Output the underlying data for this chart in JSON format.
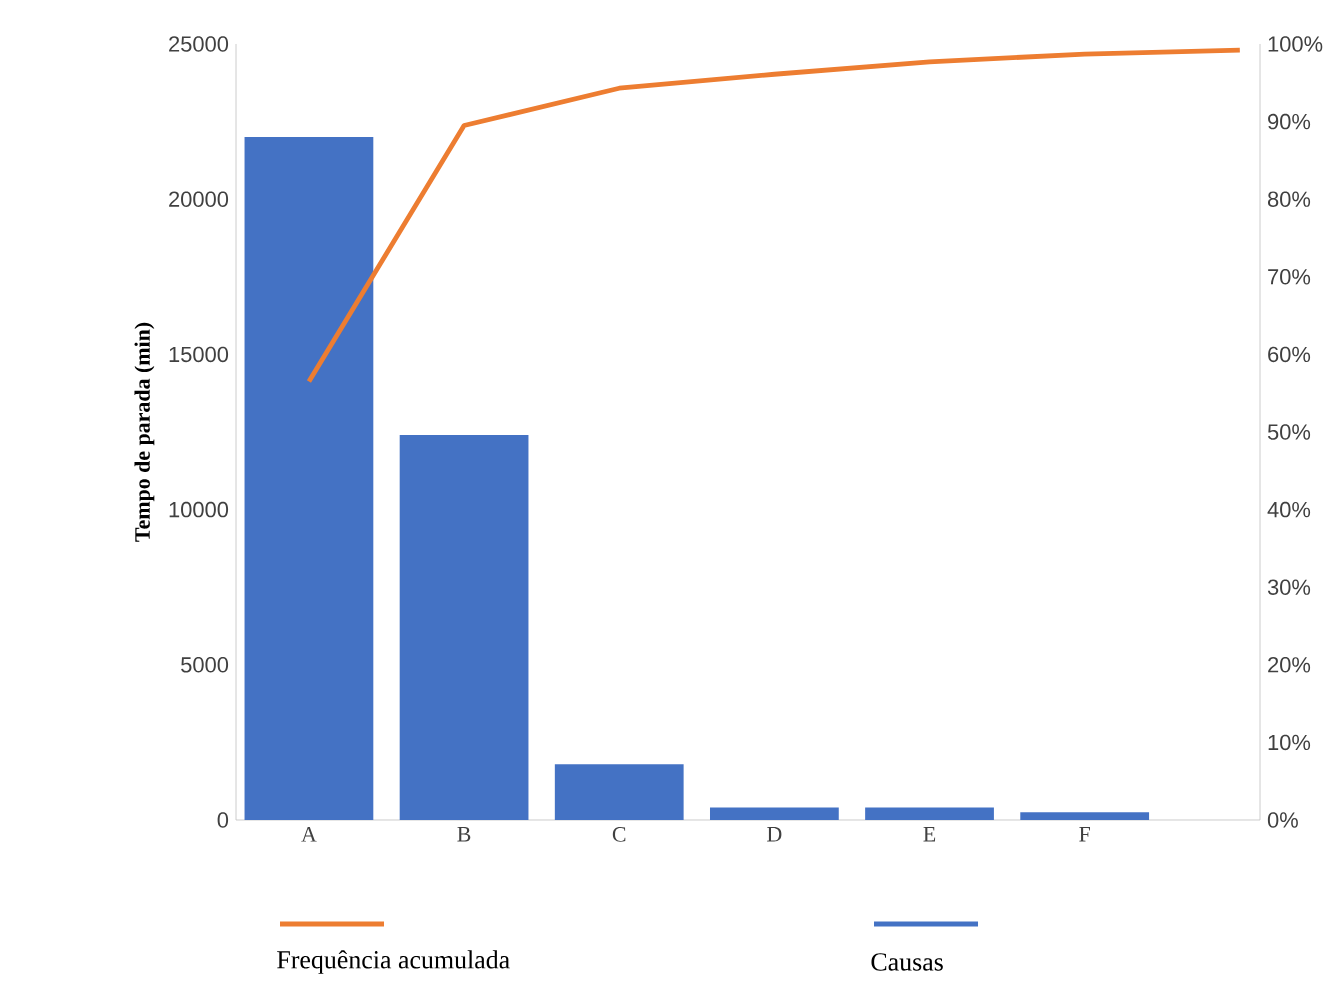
{
  "chart_data": {
    "type": "bar",
    "ylabel": "Tempo de parada (min)",
    "categories": [
      "A",
      "B",
      "C",
      "D",
      "E",
      "F",
      null
    ],
    "series": [
      {
        "name": "Frequência acumulada",
        "type": "line",
        "axis": "y2",
        "color": "#ed7d31",
        "values": [
          56.5,
          89.5,
          94.3,
          96.1,
          97.7,
          98.7,
          99.2
        ]
      },
      {
        "name": "Causas",
        "color": "#4472c4",
        "values": [
          22000,
          12400,
          1800,
          400,
          400,
          250,
          null
        ]
      }
    ],
    "ylim": [
      0,
      25000
    ],
    "yticks": [
      0,
      5000,
      10000,
      15000,
      20000,
      25000
    ],
    "y2lim": [
      0,
      100
    ],
    "y2ticks": [
      {
        "value": 0,
        "label": "0%"
      },
      {
        "value": 10,
        "label": "10%"
      },
      {
        "value": 20,
        "label": "20%"
      },
      {
        "value": 30,
        "label": "30%"
      },
      {
        "value": 40,
        "label": "40%"
      },
      {
        "value": 50,
        "label": "50%"
      },
      {
        "value": 60,
        "label": "60%"
      },
      {
        "value": 70,
        "label": "70%"
      },
      {
        "value": 80,
        "label": "80%"
      },
      {
        "value": 90,
        "label": "90%"
      },
      {
        "value": 100,
        "label": "100%"
      }
    ],
    "legend": "bottom",
    "grid": false
  }
}
